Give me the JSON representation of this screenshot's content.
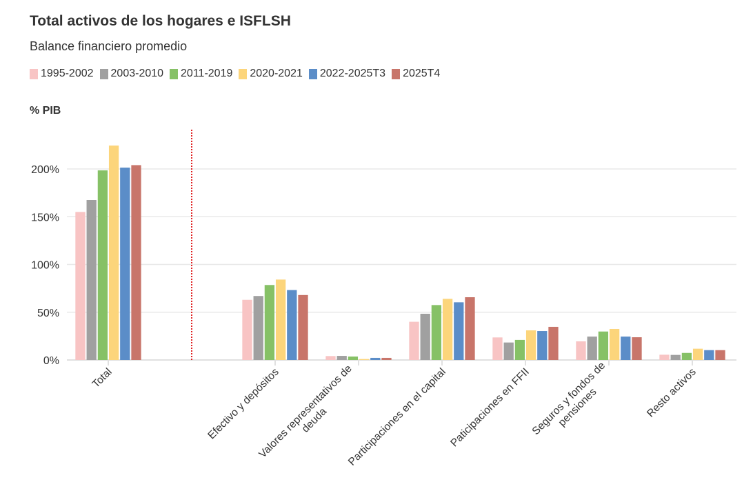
{
  "chart_data": {
    "type": "bar",
    "title": "Total activos de los hogares e ISFLSH",
    "subtitle": "Balance financiero promedio",
    "ylabel": "% PIB",
    "ylim": [
      0,
      230
    ],
    "yticks": [
      "0%",
      "50%",
      "100%",
      "150%",
      "200%"
    ],
    "ytick_values": [
      0,
      50,
      100,
      150,
      200
    ],
    "grid": true,
    "legend_position": "top-left",
    "categories": [
      "Total",
      "",
      "Efectivo y depósitos",
      "Valores representativos de\ndeuda",
      "Participaciones en el capital",
      "Paticipaciones en FFII",
      "Seguros y fondos de\npensiones",
      "Resto activos"
    ],
    "separator_after_category": "Total",
    "series": [
      {
        "name": "1995-2002",
        "color": "#f8c4c4",
        "values": [
          155,
          null,
          63,
          4.1,
          40,
          23.6,
          19.5,
          5.5
        ]
      },
      {
        "name": "2003-2010",
        "color": "#a0a0a0",
        "values": [
          167.5,
          null,
          67,
          4.3,
          48.4,
          18.3,
          24.5,
          5.3
        ]
      },
      {
        "name": "2011-2019",
        "color": "#86c166",
        "values": [
          198.5,
          null,
          78.5,
          3.6,
          57.5,
          21,
          29.8,
          7.4
        ]
      },
      {
        "name": "2020-2021",
        "color": "#fcd57b",
        "values": [
          224.5,
          null,
          84.2,
          1,
          64,
          31,
          32.5,
          11.8
        ]
      },
      {
        "name": "2022-2025T3",
        "color": "#5b8dc8",
        "values": [
          201.4,
          null,
          73.2,
          2.2,
          60.4,
          30.3,
          24.5,
          10.3
        ]
      },
      {
        "name": "2025T4",
        "color": "#c8756a",
        "values": [
          204,
          null,
          68,
          2.2,
          65.7,
          34.7,
          23.8,
          10.3
        ]
      }
    ]
  }
}
